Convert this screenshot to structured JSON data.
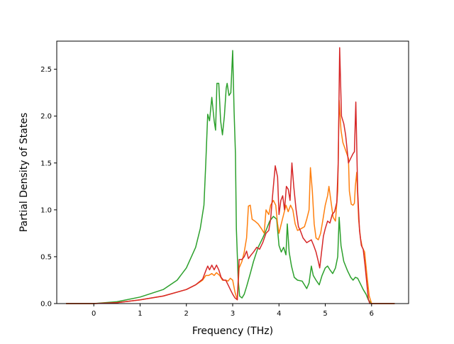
{
  "chart_data": {
    "type": "line",
    "xlabel": "Frequency (THz)",
    "ylabel": "Partial Density of States",
    "xlim": [
      -0.8,
      6.8
    ],
    "ylim": [
      0,
      2.8
    ],
    "xticks": [
      "0",
      "1",
      "2",
      "3",
      "4",
      "5",
      "6"
    ],
    "yticks": [
      "0.0",
      "0.5",
      "1.0",
      "1.5",
      "2.0",
      "2.5"
    ],
    "grid": false,
    "legend": "none",
    "series": [
      {
        "color": "#2ca02c",
        "points": [
          [
            -0.6,
            0
          ],
          [
            0,
            0
          ],
          [
            0.5,
            0.02
          ],
          [
            1.0,
            0.07
          ],
          [
            1.5,
            0.15
          ],
          [
            1.8,
            0.25
          ],
          [
            2.0,
            0.38
          ],
          [
            2.2,
            0.6
          ],
          [
            2.3,
            0.8
          ],
          [
            2.38,
            1.05
          ],
          [
            2.42,
            1.5
          ],
          [
            2.46,
            2.02
          ],
          [
            2.5,
            1.95
          ],
          [
            2.55,
            2.2
          ],
          [
            2.6,
            1.95
          ],
          [
            2.63,
            1.85
          ],
          [
            2.66,
            2.35
          ],
          [
            2.7,
            2.35
          ],
          [
            2.74,
            1.95
          ],
          [
            2.78,
            1.8
          ],
          [
            2.82,
            2.0
          ],
          [
            2.86,
            2.3
          ],
          [
            2.88,
            2.35
          ],
          [
            2.92,
            2.22
          ],
          [
            2.96,
            2.25
          ],
          [
            3.0,
            2.7
          ],
          [
            3.03,
            2.05
          ],
          [
            3.06,
            1.6
          ],
          [
            3.08,
            0.8
          ],
          [
            3.12,
            0.25
          ],
          [
            3.15,
            0.08
          ],
          [
            3.2,
            0.06
          ],
          [
            3.25,
            0.1
          ],
          [
            3.3,
            0.18
          ],
          [
            3.38,
            0.32
          ],
          [
            3.45,
            0.45
          ],
          [
            3.55,
            0.6
          ],
          [
            3.65,
            0.7
          ],
          [
            3.72,
            0.78
          ],
          [
            3.8,
            0.88
          ],
          [
            3.88,
            0.93
          ],
          [
            3.95,
            0.9
          ],
          [
            4.0,
            0.62
          ],
          [
            4.05,
            0.55
          ],
          [
            4.1,
            0.6
          ],
          [
            4.15,
            0.52
          ],
          [
            4.18,
            0.85
          ],
          [
            4.22,
            0.55
          ],
          [
            4.27,
            0.4
          ],
          [
            4.33,
            0.28
          ],
          [
            4.4,
            0.25
          ],
          [
            4.5,
            0.24
          ],
          [
            4.55,
            0.2
          ],
          [
            4.6,
            0.16
          ],
          [
            4.65,
            0.22
          ],
          [
            4.7,
            0.4
          ],
          [
            4.74,
            0.3
          ],
          [
            4.8,
            0.25
          ],
          [
            4.87,
            0.2
          ],
          [
            4.93,
            0.3
          ],
          [
            5.0,
            0.38
          ],
          [
            5.05,
            0.4
          ],
          [
            5.1,
            0.36
          ],
          [
            5.16,
            0.32
          ],
          [
            5.22,
            0.38
          ],
          [
            5.27,
            0.5
          ],
          [
            5.3,
            0.92
          ],
          [
            5.34,
            0.62
          ],
          [
            5.4,
            0.45
          ],
          [
            5.48,
            0.35
          ],
          [
            5.55,
            0.28
          ],
          [
            5.6,
            0.25
          ],
          [
            5.65,
            0.28
          ],
          [
            5.7,
            0.27
          ],
          [
            5.75,
            0.22
          ],
          [
            5.82,
            0.15
          ],
          [
            5.88,
            0.1
          ],
          [
            5.93,
            0.04
          ],
          [
            6.0,
            0
          ],
          [
            6.5,
            0
          ]
        ]
      },
      {
        "color": "#ff7f0e",
        "points": [
          [
            -0.6,
            0
          ],
          [
            0,
            0
          ],
          [
            0.5,
            0.01
          ],
          [
            1.0,
            0.04
          ],
          [
            1.5,
            0.08
          ],
          [
            2.0,
            0.15
          ],
          [
            2.2,
            0.2
          ],
          [
            2.35,
            0.25
          ],
          [
            2.42,
            0.3
          ],
          [
            2.48,
            0.3
          ],
          [
            2.55,
            0.32
          ],
          [
            2.6,
            0.3
          ],
          [
            2.65,
            0.33
          ],
          [
            2.72,
            0.3
          ],
          [
            2.78,
            0.25
          ],
          [
            2.85,
            0.25
          ],
          [
            2.9,
            0.24
          ],
          [
            2.95,
            0.27
          ],
          [
            3.0,
            0.25
          ],
          [
            3.05,
            0.12
          ],
          [
            3.1,
            0.04
          ],
          [
            3.14,
            0.38
          ],
          [
            3.2,
            0.45
          ],
          [
            3.25,
            0.55
          ],
          [
            3.3,
            0.7
          ],
          [
            3.34,
            1.04
          ],
          [
            3.38,
            1.05
          ],
          [
            3.42,
            0.9
          ],
          [
            3.48,
            0.88
          ],
          [
            3.55,
            0.85
          ],
          [
            3.62,
            0.8
          ],
          [
            3.68,
            0.75
          ],
          [
            3.72,
            1.0
          ],
          [
            3.78,
            0.95
          ],
          [
            3.82,
            1.05
          ],
          [
            3.88,
            1.1
          ],
          [
            3.93,
            1.05
          ],
          [
            3.97,
            0.85
          ],
          [
            4.0,
            0.75
          ],
          [
            4.05,
            0.85
          ],
          [
            4.1,
            0.95
          ],
          [
            4.15,
            1.05
          ],
          [
            4.2,
            0.98
          ],
          [
            4.25,
            1.05
          ],
          [
            4.3,
            1.0
          ],
          [
            4.35,
            0.85
          ],
          [
            4.4,
            0.78
          ],
          [
            4.48,
            0.8
          ],
          [
            4.55,
            0.82
          ],
          [
            4.6,
            0.9
          ],
          [
            4.65,
            1.0
          ],
          [
            4.68,
            1.45
          ],
          [
            4.72,
            1.2
          ],
          [
            4.76,
            0.85
          ],
          [
            4.8,
            0.7
          ],
          [
            4.85,
            0.68
          ],
          [
            4.9,
            0.75
          ],
          [
            4.95,
            0.9
          ],
          [
            5.0,
            1.05
          ],
          [
            5.05,
            1.15
          ],
          [
            5.08,
            1.25
          ],
          [
            5.12,
            1.1
          ],
          [
            5.17,
            0.92
          ],
          [
            5.22,
            0.88
          ],
          [
            5.27,
            1.2
          ],
          [
            5.3,
            2.17
          ],
          [
            5.34,
            1.85
          ],
          [
            5.38,
            1.72
          ],
          [
            5.45,
            1.62
          ],
          [
            5.5,
            1.55
          ],
          [
            5.52,
            1.2
          ],
          [
            5.56,
            1.06
          ],
          [
            5.6,
            1.05
          ],
          [
            5.63,
            1.07
          ],
          [
            5.65,
            1.25
          ],
          [
            5.68,
            1.4
          ],
          [
            5.72,
            0.9
          ],
          [
            5.76,
            0.7
          ],
          [
            5.8,
            0.6
          ],
          [
            5.85,
            0.55
          ],
          [
            5.9,
            0.3
          ],
          [
            5.95,
            0.08
          ],
          [
            6.0,
            0
          ],
          [
            6.5,
            0
          ]
        ]
      },
      {
        "color": "#d62728",
        "points": [
          [
            -0.6,
            0
          ],
          [
            0,
            0
          ],
          [
            0.5,
            0.01
          ],
          [
            1.0,
            0.04
          ],
          [
            1.5,
            0.08
          ],
          [
            2.0,
            0.15
          ],
          [
            2.2,
            0.2
          ],
          [
            2.35,
            0.26
          ],
          [
            2.42,
            0.35
          ],
          [
            2.46,
            0.4
          ],
          [
            2.5,
            0.36
          ],
          [
            2.55,
            0.41
          ],
          [
            2.6,
            0.36
          ],
          [
            2.65,
            0.41
          ],
          [
            2.7,
            0.36
          ],
          [
            2.75,
            0.28
          ],
          [
            2.8,
            0.25
          ],
          [
            2.85,
            0.25
          ],
          [
            2.9,
            0.2
          ],
          [
            2.95,
            0.15
          ],
          [
            3.0,
            0.1
          ],
          [
            3.05,
            0.06
          ],
          [
            3.1,
            0.04
          ],
          [
            3.14,
            0.47
          ],
          [
            3.2,
            0.47
          ],
          [
            3.25,
            0.5
          ],
          [
            3.3,
            0.56
          ],
          [
            3.34,
            0.48
          ],
          [
            3.4,
            0.52
          ],
          [
            3.45,
            0.55
          ],
          [
            3.52,
            0.6
          ],
          [
            3.58,
            0.58
          ],
          [
            3.65,
            0.65
          ],
          [
            3.72,
            0.75
          ],
          [
            3.78,
            0.78
          ],
          [
            3.82,
            0.9
          ],
          [
            3.87,
            1.2
          ],
          [
            3.92,
            1.47
          ],
          [
            3.97,
            1.35
          ],
          [
            4.0,
            0.95
          ],
          [
            4.04,
            1.1
          ],
          [
            4.08,
            1.15
          ],
          [
            4.12,
            1.0
          ],
          [
            4.16,
            1.25
          ],
          [
            4.2,
            1.22
          ],
          [
            4.24,
            1.1
          ],
          [
            4.28,
            1.5
          ],
          [
            4.32,
            1.25
          ],
          [
            4.37,
            1.0
          ],
          [
            4.42,
            0.82
          ],
          [
            4.46,
            0.78
          ],
          [
            4.52,
            0.7
          ],
          [
            4.6,
            0.65
          ],
          [
            4.7,
            0.68
          ],
          [
            4.75,
            0.62
          ],
          [
            4.8,
            0.55
          ],
          [
            4.85,
            0.45
          ],
          [
            4.88,
            0.38
          ],
          [
            4.92,
            0.55
          ],
          [
            4.96,
            0.72
          ],
          [
            5.0,
            0.8
          ],
          [
            5.05,
            0.88
          ],
          [
            5.1,
            0.86
          ],
          [
            5.15,
            0.95
          ],
          [
            5.2,
            0.98
          ],
          [
            5.25,
            1.08
          ],
          [
            5.28,
            1.5
          ],
          [
            5.31,
            2.73
          ],
          [
            5.35,
            2.0
          ],
          [
            5.4,
            1.92
          ],
          [
            5.44,
            1.8
          ],
          [
            5.48,
            1.6
          ],
          [
            5.5,
            1.5
          ],
          [
            5.55,
            1.55
          ],
          [
            5.6,
            1.6
          ],
          [
            5.63,
            1.62
          ],
          [
            5.66,
            2.15
          ],
          [
            5.7,
            1.2
          ],
          [
            5.74,
            0.78
          ],
          [
            5.78,
            0.62
          ],
          [
            5.82,
            0.58
          ],
          [
            5.86,
            0.4
          ],
          [
            5.9,
            0.2
          ],
          [
            5.93,
            0.05
          ],
          [
            5.96,
            0
          ],
          [
            6.5,
            0
          ]
        ]
      }
    ]
  }
}
